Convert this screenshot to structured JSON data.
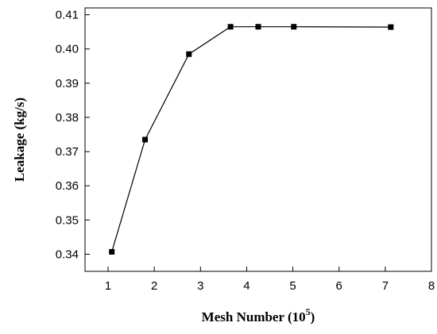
{
  "chart_data": {
    "type": "line",
    "title": "",
    "xlabel": "Mesh Number",
    "xlabel_unit_open": "(10",
    "xlabel_unit_sup": "5",
    "xlabel_unit_close": ")",
    "ylabel": "Leakage (kg/s)",
    "xlim": [
      0.5,
      8
    ],
    "ylim": [
      0.335,
      0.412
    ],
    "x_ticks": [
      1,
      2,
      3,
      4,
      5,
      6,
      7,
      8
    ],
    "y_ticks": [
      0.34,
      0.35,
      0.36,
      0.37,
      0.38,
      0.39,
      0.4,
      0.41
    ],
    "x_tick_labels": [
      "1",
      "2",
      "3",
      "4",
      "5",
      "6",
      "7",
      "8"
    ],
    "y_tick_labels": [
      "0.34",
      "0.35",
      "0.36",
      "0.37",
      "0.38",
      "0.39",
      "0.40",
      "0.41"
    ],
    "grid": false,
    "legend": "none",
    "series": [
      {
        "x": [
          1.08,
          1.8,
          2.75,
          3.65,
          4.25,
          5.02,
          7.12
        ],
        "y": [
          0.3407,
          0.3735,
          0.3985,
          0.4065,
          0.4065,
          0.4065,
          0.4064
        ],
        "color": "#000000",
        "marker": "square"
      }
    ]
  }
}
